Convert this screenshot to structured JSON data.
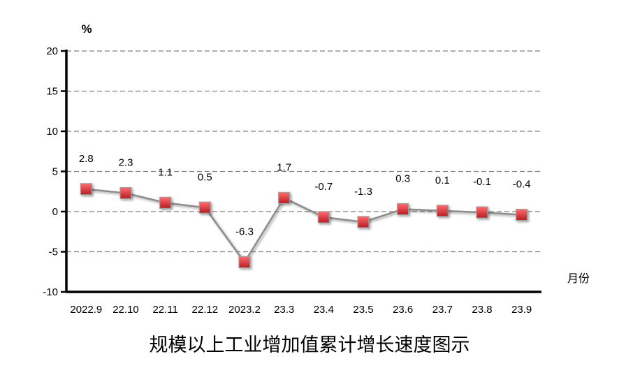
{
  "chart_data": {
    "type": "line",
    "title": "规模以上工业增加值累计增长速度图示",
    "ylabel": "%",
    "xlabel": "月份",
    "categories": [
      "2022.9",
      "22.10",
      "22.11",
      "22.12",
      "2023.2",
      "23.3",
      "23.4",
      "23.5",
      "23.6",
      "23.7",
      "23.8",
      "23.9"
    ],
    "values": [
      2.8,
      2.3,
      1.1,
      0.5,
      -6.3,
      1.7,
      -0.7,
      -1.3,
      0.3,
      0.1,
      -0.1,
      -0.4
    ],
    "ylim": [
      -10,
      20
    ],
    "yticks": [
      20,
      15,
      10,
      5,
      0,
      -5,
      -10
    ],
    "grid": true,
    "data_labels": true,
    "line_color": "#8c8c8c",
    "marker_color": "#e8353a"
  }
}
